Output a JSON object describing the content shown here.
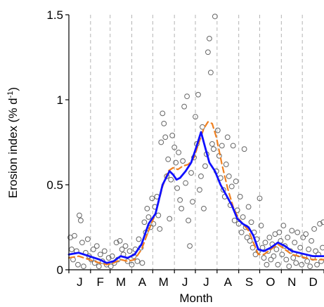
{
  "chart_data": {
    "type": "scatter",
    "title": "",
    "xlabel": "Month",
    "ylabel": "Erosion index (% d",
    "ylabel_sup": "-1",
    "ylabel_close": ")",
    "months": [
      "J",
      "F",
      "M",
      "A",
      "M",
      "J",
      "J",
      "A",
      "S",
      "O",
      "N",
      "D"
    ],
    "xlim": [
      1,
      366
    ],
    "ylim": [
      0,
      1.5
    ],
    "yticks": [
      0,
      0.5,
      1,
      1.5
    ],
    "ytick_labels": [
      "0",
      "0.5",
      "1",
      "1.5"
    ],
    "grid": "vertical dashed month boundaries",
    "series": [
      {
        "kind": "points",
        "marker": "open-circle",
        "color": "#666666",
        "points": [
          [
            3,
            0.19
          ],
          [
            5,
            0.12
          ],
          [
            7,
            0.06
          ],
          [
            9,
            0.2
          ],
          [
            12,
            0.11
          ],
          [
            14,
            0.03
          ],
          [
            16,
            0.32
          ],
          [
            18,
            0.29
          ],
          [
            20,
            0.16
          ],
          [
            22,
            0.02
          ],
          [
            25,
            0.1
          ],
          [
            28,
            0.18
          ],
          [
            30,
            0.08
          ],
          [
            33,
            0.06
          ],
          [
            36,
            0.12
          ],
          [
            38,
            0.04
          ],
          [
            41,
            0.14
          ],
          [
            44,
            0.02
          ],
          [
            46,
            0.09
          ],
          [
            49,
            0.05
          ],
          [
            52,
            0.11
          ],
          [
            55,
            0.03
          ],
          [
            58,
            0.07
          ],
          [
            61,
            0.02
          ],
          [
            63,
            0.08
          ],
          [
            66,
            0.04
          ],
          [
            69,
            0.16
          ],
          [
            71,
            0.06
          ],
          [
            74,
            0.17
          ],
          [
            77,
            0.12
          ],
          [
            79,
            0.09
          ],
          [
            82,
            0.14
          ],
          [
            85,
            0.05
          ],
          [
            88,
            0.11
          ],
          [
            91,
            0.03
          ],
          [
            94,
            0.08
          ],
          [
            96,
            0.12
          ],
          [
            99,
            0.05
          ],
          [
            101,
            0.18
          ],
          [
            104,
            0.13
          ],
          [
            106,
            0.04
          ],
          [
            109,
            0.28
          ],
          [
            111,
            0.22
          ],
          [
            113,
            0.36
          ],
          [
            115,
            0.31
          ],
          [
            118,
            0.25
          ],
          [
            120,
            0.42
          ],
          [
            122,
            0.27
          ],
          [
            124,
            0.37
          ],
          [
            127,
            0.43
          ],
          [
            129,
            0.32
          ],
          [
            131,
            0.24
          ],
          [
            133,
            0.75
          ],
          [
            135,
            0.92
          ],
          [
            137,
            0.86
          ],
          [
            139,
            0.78
          ],
          [
            141,
            0.55
          ],
          [
            143,
            0.65
          ],
          [
            145,
            0.3
          ],
          [
            147,
            0.53
          ],
          [
            149,
            0.79
          ],
          [
            152,
            0.72
          ],
          [
            154,
            0.63
          ],
          [
            156,
            0.48
          ],
          [
            158,
            0.69
          ],
          [
            160,
            0.41
          ],
          [
            162,
            0.36
          ],
          [
            164,
            0.64
          ],
          [
            166,
            0.96
          ],
          [
            168,
            0.51
          ],
          [
            170,
            1.02
          ],
          [
            172,
            0.29
          ],
          [
            174,
            0.14
          ],
          [
            176,
            0.57
          ],
          [
            178,
            0.4
          ],
          [
            180,
            0.66
          ],
          [
            182,
            0.9
          ],
          [
            184,
            0.74
          ],
          [
            186,
            1.03
          ],
          [
            188,
            0.47
          ],
          [
            190,
            0.55
          ],
          [
            192,
            0.84
          ],
          [
            194,
            0.36
          ],
          [
            196,
            0.61
          ],
          [
            198,
            0.68
          ],
          [
            200,
            1.28
          ],
          [
            202,
            1.36
          ],
          [
            204,
            1.16
          ],
          [
            206,
            0.74
          ],
          [
            208,
            0.71
          ],
          [
            210,
            1.49
          ],
          [
            212,
            0.58
          ],
          [
            214,
            0.82
          ],
          [
            216,
            0.67
          ],
          [
            218,
            0.54
          ],
          [
            220,
            0.73
          ],
          [
            222,
            0.47
          ],
          [
            224,
            0.43
          ],
          [
            226,
            0.62
          ],
          [
            228,
            0.78
          ],
          [
            230,
            0.55
          ],
          [
            232,
            0.38
          ],
          [
            234,
            0.49
          ],
          [
            236,
            0.73
          ],
          [
            238,
            0.29
          ],
          [
            240,
            0.52
          ],
          [
            242,
            0.35
          ],
          [
            244,
            0.27
          ],
          [
            246,
            0.43
          ],
          [
            248,
            0.22
          ],
          [
            250,
            0.31
          ],
          [
            252,
            0.71
          ],
          [
            254,
            0.25
          ],
          [
            256,
            0.19
          ],
          [
            258,
            0.37
          ],
          [
            260,
            0.17
          ],
          [
            262,
            0.28
          ],
          [
            264,
            0.13
          ],
          [
            266,
            0.22
          ],
          [
            268,
            0.09
          ],
          [
            270,
            0.18
          ],
          [
            272,
            0.11
          ],
          [
            274,
            0.42
          ],
          [
            276,
            0.26
          ],
          [
            278,
            0.13
          ],
          [
            280,
            0.07
          ],
          [
            282,
            0.16
          ],
          [
            284,
            0.03
          ],
          [
            286,
            0.11
          ],
          [
            288,
            0.19
          ],
          [
            290,
            0.06
          ],
          [
            292,
            0.15
          ],
          [
            294,
            0.08
          ],
          [
            296,
            0.21
          ],
          [
            298,
            0.12
          ],
          [
            300,
            0.03
          ],
          [
            302,
            0.22
          ],
          [
            304,
            0.17
          ],
          [
            306,
            0.09
          ],
          [
            308,
            0.26
          ],
          [
            310,
            0.14
          ],
          [
            312,
            0.06
          ],
          [
            314,
            0.19
          ],
          [
            316,
            0.02
          ],
          [
            318,
            0.11
          ],
          [
            320,
            0.23
          ],
          [
            322,
            0.07
          ],
          [
            324,
            0.16
          ],
          [
            326,
            0.04
          ],
          [
            328,
            0.22
          ],
          [
            330,
            0.09
          ],
          [
            332,
            0.13
          ],
          [
            334,
            0.03
          ],
          [
            336,
            0.19
          ],
          [
            338,
            0.08
          ],
          [
            340,
            0.21
          ],
          [
            342,
            0.05
          ],
          [
            344,
            0.12
          ],
          [
            346,
            0.02
          ],
          [
            348,
            0.17
          ],
          [
            350,
            0.07
          ],
          [
            352,
            0.24
          ],
          [
            354,
            0.11
          ],
          [
            356,
            0.03
          ],
          [
            358,
            0.09
          ],
          [
            360,
            0.27
          ],
          [
            362,
            0.05
          ],
          [
            364,
            0.13
          ],
          [
            365,
            0.28
          ]
        ]
      },
      {
        "kind": "line",
        "style": "solid",
        "color": "#1010ff",
        "points": [
          [
            1,
            0.09
          ],
          [
            15,
            0.1
          ],
          [
            30,
            0.08
          ],
          [
            45,
            0.06
          ],
          [
            55,
            0.04
          ],
          [
            65,
            0.05
          ],
          [
            75,
            0.08
          ],
          [
            85,
            0.07
          ],
          [
            95,
            0.09
          ],
          [
            105,
            0.15
          ],
          [
            115,
            0.27
          ],
          [
            125,
            0.33
          ],
          [
            135,
            0.5
          ],
          [
            145,
            0.58
          ],
          [
            150,
            0.56
          ],
          [
            155,
            0.53
          ],
          [
            160,
            0.54
          ],
          [
            168,
            0.58
          ],
          [
            176,
            0.63
          ],
          [
            184,
            0.73
          ],
          [
            190,
            0.81
          ],
          [
            196,
            0.72
          ],
          [
            202,
            0.63
          ],
          [
            210,
            0.58
          ],
          [
            218,
            0.5
          ],
          [
            226,
            0.44
          ],
          [
            234,
            0.38
          ],
          [
            242,
            0.3
          ],
          [
            250,
            0.27
          ],
          [
            258,
            0.25
          ],
          [
            265,
            0.2
          ],
          [
            272,
            0.12
          ],
          [
            280,
            0.11
          ],
          [
            290,
            0.13
          ],
          [
            300,
            0.16
          ],
          [
            310,
            0.14
          ],
          [
            320,
            0.11
          ],
          [
            330,
            0.1
          ],
          [
            340,
            0.09
          ],
          [
            350,
            0.08
          ],
          [
            366,
            0.08
          ]
        ]
      },
      {
        "kind": "line",
        "style": "dashed",
        "color": "#f08020",
        "points": [
          [
            1,
            0.07
          ],
          [
            15,
            0.08
          ],
          [
            30,
            0.06
          ],
          [
            45,
            0.04
          ],
          [
            55,
            0.03
          ],
          [
            65,
            0.04
          ],
          [
            75,
            0.06
          ],
          [
            85,
            0.05
          ],
          [
            95,
            0.06
          ],
          [
            105,
            0.12
          ],
          [
            115,
            0.23
          ],
          [
            125,
            0.33
          ],
          [
            135,
            0.49
          ],
          [
            143,
            0.58
          ],
          [
            150,
            0.6
          ],
          [
            157,
            0.59
          ],
          [
            164,
            0.61
          ],
          [
            172,
            0.62
          ],
          [
            180,
            0.66
          ],
          [
            188,
            0.76
          ],
          [
            194,
            0.83
          ],
          [
            200,
            0.87
          ],
          [
            206,
            0.86
          ],
          [
            212,
            0.78
          ],
          [
            220,
            0.62
          ],
          [
            228,
            0.48
          ],
          [
            236,
            0.37
          ],
          [
            244,
            0.3
          ],
          [
            252,
            0.26
          ],
          [
            258,
            0.23
          ],
          [
            266,
            0.15
          ],
          [
            272,
            0.09
          ],
          [
            280,
            0.09
          ],
          [
            290,
            0.12
          ],
          [
            300,
            0.15
          ],
          [
            310,
            0.12
          ],
          [
            320,
            0.09
          ],
          [
            330,
            0.08
          ],
          [
            340,
            0.07
          ],
          [
            350,
            0.06
          ],
          [
            366,
            0.06
          ]
        ]
      }
    ]
  }
}
